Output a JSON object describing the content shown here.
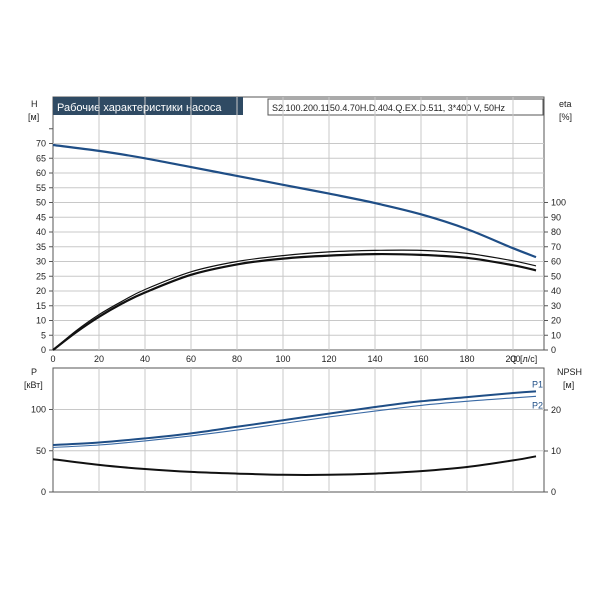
{
  "title": "Рабочие характеристики насоса",
  "model": "S2.100.200.1150.4.70H.D.404.Q.EX.D.511, 3*400 V, 50Hz",
  "colors": {
    "head": "#1f4e86",
    "eta": "#111111",
    "p1": "#1f4e86",
    "p2": "#3a6aa5",
    "npsh": "#111111",
    "title_bg": "#2f4a63",
    "grid": "#c8c8c8"
  },
  "chart_data": [
    {
      "type": "line",
      "panel": "top",
      "xlabel": "Q",
      "xunit": "[л/с]",
      "xlim": [
        0,
        210
      ],
      "xticks": [
        0,
        20,
        40,
        60,
        80,
        100,
        120,
        140,
        160,
        180,
        200
      ],
      "ylabel": "H",
      "yunit": "[м]",
      "ylim": [
        0,
        70
      ],
      "yticks": [
        0,
        5,
        10,
        15,
        20,
        25,
        30,
        35,
        40,
        45,
        50,
        55,
        60,
        65,
        70
      ],
      "y2label": "eta",
      "y2unit": "[%]",
      "y2ticks": [
        0,
        10,
        20,
        30,
        40,
        50,
        60,
        70,
        80,
        90,
        100
      ],
      "series": [
        {
          "key": "head",
          "axis": "left",
          "x": [
            0,
            20,
            40,
            60,
            80,
            100,
            120,
            140,
            160,
            180,
            200,
            210
          ],
          "y": [
            69.5,
            67.5,
            65,
            62,
            59,
            56,
            53,
            49.8,
            46,
            41,
            34.5,
            31.5
          ]
        },
        {
          "key": "eta_outer",
          "axis": "right",
          "x": [
            0,
            10,
            20,
            30,
            40,
            60,
            80,
            100,
            120,
            140,
            160,
            180,
            200,
            210
          ],
          "y": [
            0,
            13,
            24,
            33,
            41,
            53,
            60,
            64,
            66.5,
            67.5,
            67.5,
            65.5,
            60.5,
            57
          ]
        },
        {
          "key": "eta_inner",
          "axis": "right",
          "x": [
            0,
            10,
            20,
            30,
            40,
            60,
            80,
            100,
            120,
            140,
            160,
            180,
            200,
            210
          ],
          "y": [
            0,
            12,
            22.5,
            31.5,
            39,
            51,
            58,
            62,
            64,
            65,
            64.5,
            62.5,
            57.5,
            54
          ]
        }
      ]
    },
    {
      "type": "line",
      "panel": "bottom",
      "xlim": [
        0,
        210
      ],
      "ylabel": "P",
      "yunit": "[кВт]",
      "ylim": [
        0,
        140
      ],
      "yticks": [
        0,
        50,
        100
      ],
      "y2label": "NPSH",
      "y2unit": "[м]",
      "y2lim": [
        0,
        28
      ],
      "y2ticks": [
        0,
        10,
        20
      ],
      "series": [
        {
          "name": "P1",
          "key": "p1",
          "axis": "left",
          "x": [
            0,
            20,
            40,
            60,
            80,
            100,
            120,
            140,
            160,
            180,
            200,
            210
          ],
          "y": [
            57,
            60,
            65,
            71,
            79,
            87,
            95,
            103,
            110,
            115,
            120,
            122
          ]
        },
        {
          "name": "P2",
          "key": "p2",
          "axis": "left",
          "x": [
            0,
            20,
            40,
            60,
            80,
            100,
            120,
            140,
            160,
            180,
            200,
            210
          ],
          "y": [
            54,
            57,
            62,
            68,
            75,
            83,
            91,
            98,
            105,
            110,
            114,
            116
          ]
        },
        {
          "key": "npsh",
          "axis": "right",
          "x": [
            0,
            20,
            40,
            60,
            80,
            100,
            120,
            140,
            160,
            180,
            200,
            210
          ],
          "y": [
            8,
            6.6,
            5.6,
            4.9,
            4.5,
            4.2,
            4.2,
            4.5,
            5.1,
            6.1,
            7.7,
            8.7
          ]
        }
      ]
    }
  ]
}
